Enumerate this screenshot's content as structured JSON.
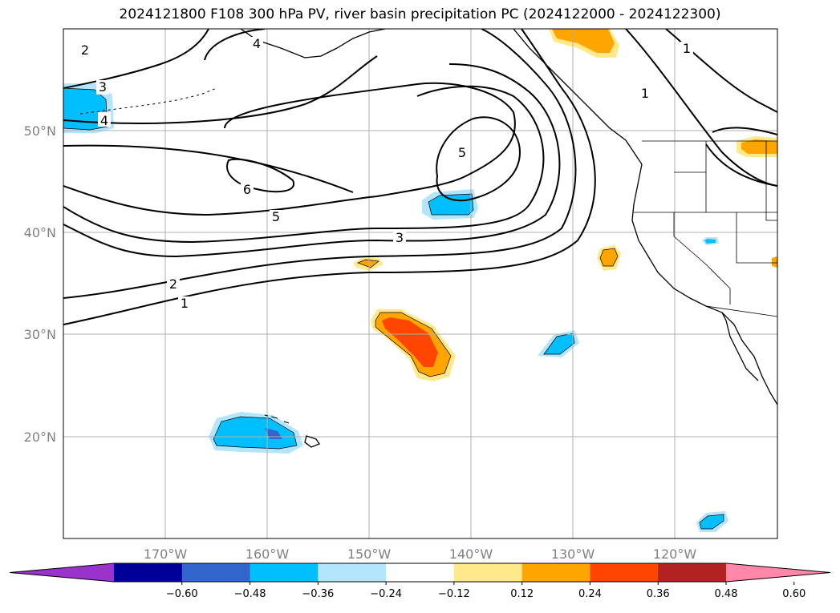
{
  "title": "2024121800 F108 300 hPa PV, river basin precipitation PC (2024122000 - 2024122300)",
  "map": {
    "lon_range": [
      -180,
      -110
    ],
    "lat_range": [
      10,
      60
    ],
    "lat_ticks": [
      {
        "value": 20,
        "label": "20°N"
      },
      {
        "value": 30,
        "label": "30°N"
      },
      {
        "value": 40,
        "label": "40°N"
      },
      {
        "value": 50,
        "label": "50°N"
      }
    ],
    "lon_ticks": [
      {
        "value": -170,
        "label": "170°W"
      },
      {
        "value": -160,
        "label": "160°W"
      },
      {
        "value": -150,
        "label": "150°W"
      },
      {
        "value": -140,
        "label": "140°W"
      },
      {
        "value": -130,
        "label": "130°W"
      },
      {
        "value": -120,
        "label": "120°W"
      }
    ],
    "pv_contour_labels": [
      "1",
      "1",
      "1",
      "2",
      "2",
      "3",
      "3",
      "4",
      "4",
      "5",
      "5",
      "6"
    ]
  },
  "colorbar": {
    "colors": [
      "#9933cc",
      "#000099",
      "#3366cc",
      "#00bfff",
      "#b3e5fc",
      "#ffffff",
      "#ffe98a",
      "#ffa500",
      "#ff4500",
      "#b22222",
      "#ff88aa"
    ],
    "tick_labels": [
      "−0.60",
      "−0.48",
      "−0.36",
      "−0.24",
      "−0.12",
      "0.12",
      "0.24",
      "0.36",
      "0.48",
      "0.60"
    ]
  }
}
